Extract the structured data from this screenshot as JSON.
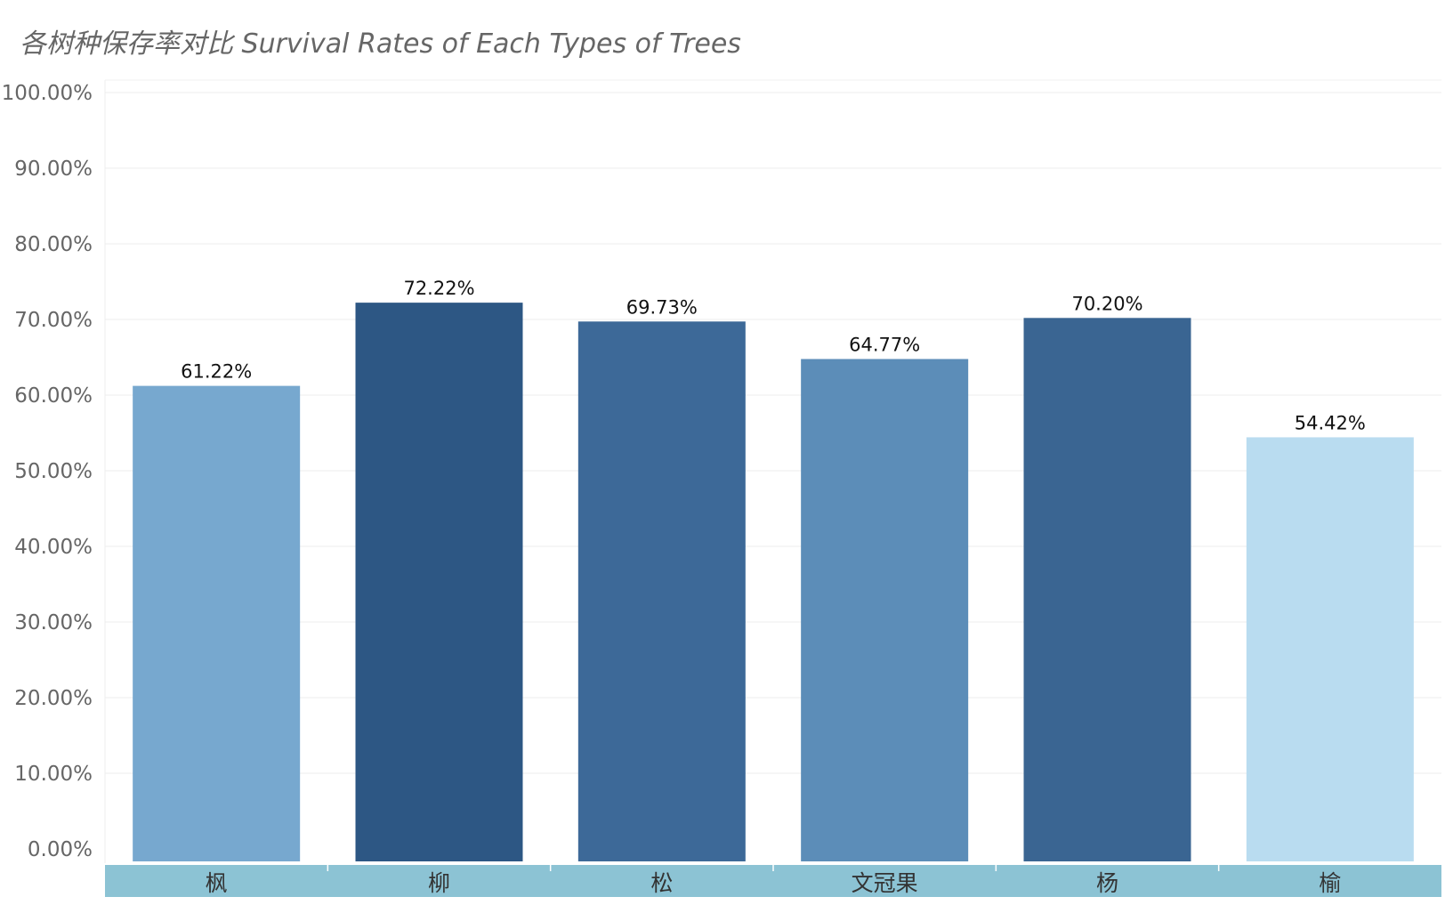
{
  "chart_data": {
    "type": "bar",
    "title": "各树种保存率对比 Survival Rates of Each Types of Trees",
    "xlabel": "",
    "ylabel": "",
    "categories": [
      "枫",
      "柳",
      "松",
      "文冠果",
      "杨",
      "榆"
    ],
    "values": [
      61.22,
      72.22,
      69.73,
      64.77,
      70.2,
      54.42
    ],
    "data_labels": [
      "61.22%",
      "72.22%",
      "69.73%",
      "64.77%",
      "70.20%",
      "54.42%"
    ],
    "bar_colors": [
      "#77a8cf",
      "#2d5784",
      "#3d6998",
      "#5c8db8",
      "#3a6592",
      "#b9dcf0"
    ],
    "ylim": [
      0,
      100
    ],
    "yticks": [
      0,
      10,
      20,
      30,
      40,
      50,
      60,
      70,
      80,
      90,
      100
    ],
    "ytick_labels": [
      "0.00%",
      "10.00%",
      "20.00%",
      "30.00%",
      "40.00%",
      "50.00%",
      "60.00%",
      "70.00%",
      "80.00%",
      "90.00%",
      "100.00%"
    ],
    "grid": true,
    "legend": "none",
    "category_band_color": "#8cc3d4"
  }
}
